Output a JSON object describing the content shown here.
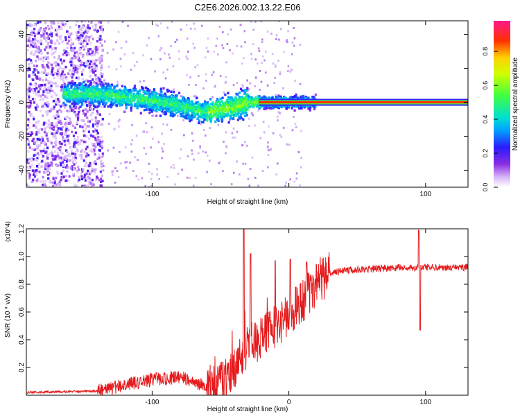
{
  "figure_title": "C2E6.2026.002.13.22.E06",
  "chart_data": [
    {
      "type": "heatmap",
      "title": "C2E6.2026.002.13.22.E06",
      "xlabel": "Height of straight line (km)",
      "ylabel": "Frequency (Hz)",
      "xlim": [
        -192,
        131
      ],
      "ylim": [
        -50,
        48
      ],
      "x_ticks": [
        -100,
        0,
        100
      ],
      "x_tick_labels": [
        "-100",
        "",
        "100"
      ],
      "y_ticks": [
        -40,
        -20,
        0,
        20,
        40
      ],
      "y_tick_labels": [
        "-40",
        "-20",
        "0",
        "20",
        "40"
      ],
      "colorbar": {
        "label": "Normalized spectral amplitude",
        "range": [
          0,
          0.98
        ],
        "ticks": [
          0.0,
          0.2,
          0.4,
          0.6,
          0.8
        ],
        "tick_labels": [
          "0.0",
          "0.2",
          "0.4",
          "0.6",
          "0.8"
        ]
      },
      "ridge": [
        {
          "x": -160,
          "f": 5
        },
        {
          "x": -140,
          "f": 5
        },
        {
          "x": -120,
          "f": 3
        },
        {
          "x": -100,
          "f": 1
        },
        {
          "x": -80,
          "f": -2
        },
        {
          "x": -60,
          "f": -6
        },
        {
          "x": -50,
          "f": -4
        },
        {
          "x": -40,
          "f": -3
        },
        {
          "x": -30,
          "f": 0
        },
        {
          "x": -20,
          "f": 0
        },
        {
          "x": 0,
          "f": 0
        },
        {
          "x": 131,
          "f": 0
        }
      ],
      "noise_region_x": [
        -192,
        -140
      ]
    },
    {
      "type": "line",
      "series": [
        {
          "name": "SNR",
          "color": "#e41a1c"
        }
      ],
      "xlabel": "Height of straight line (km)",
      "ylabel": "SNR (10 * v/v)",
      "y_scale_label": "(x10^4)",
      "xlim": [
        -192,
        131
      ],
      "ylim": [
        0,
        1.2
      ],
      "x_ticks": [
        -100,
        0,
        100
      ],
      "x_tick_labels": [
        "-100",
        "0",
        "100"
      ],
      "y_ticks": [
        0.2,
        0.4,
        0.6,
        0.8,
        1.0,
        1.2
      ],
      "y_tick_labels": [
        "0.2",
        "0.4",
        "0.6",
        "0.8",
        "1.0",
        "1.2"
      ],
      "trend": [
        {
          "x": -192,
          "y": 0.02
        },
        {
          "x": -140,
          "y": 0.03
        },
        {
          "x": -130,
          "y": 0.05
        },
        {
          "x": -120,
          "y": 0.08
        },
        {
          "x": -100,
          "y": 0.11
        },
        {
          "x": -90,
          "y": 0.12
        },
        {
          "x": -80,
          "y": 0.13
        },
        {
          "x": -70,
          "y": 0.1
        },
        {
          "x": -60,
          "y": 0.06
        },
        {
          "x": -50,
          "y": 0.08
        },
        {
          "x": -40,
          "y": 0.2
        },
        {
          "x": -30,
          "y": 0.35
        },
        {
          "x": -20,
          "y": 0.42
        },
        {
          "x": -10,
          "y": 0.5
        },
        {
          "x": 0,
          "y": 0.58
        },
        {
          "x": 10,
          "y": 0.68
        },
        {
          "x": 20,
          "y": 0.8
        },
        {
          "x": 30,
          "y": 0.88
        },
        {
          "x": 40,
          "y": 0.9
        },
        {
          "x": 60,
          "y": 0.91
        },
        {
          "x": 80,
          "y": 0.92
        },
        {
          "x": 100,
          "y": 0.92
        },
        {
          "x": 131,
          "y": 0.92
        }
      ],
      "spikes": [
        {
          "x": -33,
          "y": 1.2
        },
        {
          "x": -28,
          "y": 1.02
        },
        {
          "x": -10,
          "y": 0.97
        },
        {
          "x": 1,
          "y": 0.98
        },
        {
          "x": 13,
          "y": 0.96
        },
        {
          "x": 95,
          "y": 1.19
        },
        {
          "x": 96,
          "y": 0.47
        }
      ]
    }
  ]
}
